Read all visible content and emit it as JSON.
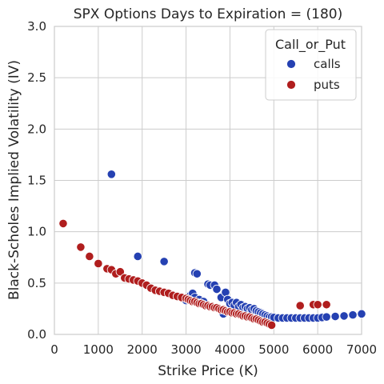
{
  "chart_data": {
    "type": "scatter",
    "title": "SPX Options   Days to Expiration = (180)",
    "xlabel": "Strike Price (K)",
    "ylabel": "Black-Scholes Implied Volatility (IV)",
    "xlim": [
      0,
      7000
    ],
    "ylim": [
      0,
      3.0
    ],
    "xticks": [
      0,
      1000,
      2000,
      3000,
      4000,
      5000,
      6000,
      7000
    ],
    "xtick_labels": [
      "0",
      "1000",
      "2000",
      "3000",
      "4000",
      "5000",
      "6000",
      "7000"
    ],
    "yticks": [
      0.0,
      0.5,
      1.0,
      1.5,
      2.0,
      2.5,
      3.0
    ],
    "ytick_labels": [
      "0.0",
      "0.5",
      "1.0",
      "1.5",
      "2.0",
      "2.5",
      "3.0"
    ],
    "grid": true,
    "legend": {
      "title": "Call_or_Put",
      "placement": "top-right"
    },
    "series": [
      {
        "name": "calls",
        "color": "#2541b2",
        "points": [
          [
            1300,
            1.56
          ],
          [
            1900,
            0.76
          ],
          [
            2500,
            0.71
          ],
          [
            3200,
            0.6
          ],
          [
            3250,
            0.59
          ],
          [
            3000,
            0.33
          ],
          [
            3100,
            0.38
          ],
          [
            3150,
            0.4
          ],
          [
            3200,
            0.36
          ],
          [
            3300,
            0.34
          ],
          [
            3400,
            0.32
          ],
          [
            3500,
            0.49
          ],
          [
            3550,
            0.48
          ],
          [
            3650,
            0.48
          ],
          [
            3700,
            0.44
          ],
          [
            3800,
            0.36
          ],
          [
            3850,
            0.2
          ],
          [
            3900,
            0.41
          ],
          [
            3950,
            0.34
          ],
          [
            4000,
            0.3
          ],
          [
            4050,
            0.31
          ],
          [
            4100,
            0.28
          ],
          [
            4150,
            0.31
          ],
          [
            4200,
            0.27
          ],
          [
            4250,
            0.29
          ],
          [
            4300,
            0.26
          ],
          [
            4350,
            0.27
          ],
          [
            4400,
            0.25
          ],
          [
            4450,
            0.26
          ],
          [
            4500,
            0.24
          ],
          [
            4550,
            0.25
          ],
          [
            4600,
            0.23
          ],
          [
            4650,
            0.22
          ],
          [
            4700,
            0.21
          ],
          [
            4750,
            0.2
          ],
          [
            4800,
            0.19
          ],
          [
            4850,
            0.18
          ],
          [
            4900,
            0.17
          ],
          [
            4950,
            0.17
          ],
          [
            5000,
            0.165
          ],
          [
            5100,
            0.16
          ],
          [
            5200,
            0.16
          ],
          [
            5300,
            0.16
          ],
          [
            5400,
            0.16
          ],
          [
            5500,
            0.16
          ],
          [
            5600,
            0.16
          ],
          [
            5700,
            0.16
          ],
          [
            5800,
            0.16
          ],
          [
            5900,
            0.16
          ],
          [
            6000,
            0.16
          ],
          [
            6100,
            0.165
          ],
          [
            6200,
            0.17
          ],
          [
            6400,
            0.175
          ],
          [
            6600,
            0.18
          ],
          [
            6800,
            0.19
          ],
          [
            7000,
            0.2
          ]
        ]
      },
      {
        "name": "puts",
        "color": "#b01e1e",
        "points": [
          [
            200,
            1.08
          ],
          [
            600,
            0.85
          ],
          [
            800,
            0.76
          ],
          [
            1000,
            0.69
          ],
          [
            1200,
            0.64
          ],
          [
            1300,
            0.63
          ],
          [
            1400,
            0.59
          ],
          [
            1500,
            0.61
          ],
          [
            1600,
            0.55
          ],
          [
            1700,
            0.54
          ],
          [
            1800,
            0.53
          ],
          [
            1900,
            0.52
          ],
          [
            2000,
            0.5
          ],
          [
            2100,
            0.48
          ],
          [
            2200,
            0.45
          ],
          [
            2300,
            0.43
          ],
          [
            2400,
            0.42
          ],
          [
            2500,
            0.41
          ],
          [
            2600,
            0.4
          ],
          [
            2700,
            0.38
          ],
          [
            2800,
            0.37
          ],
          [
            2900,
            0.36
          ],
          [
            3000,
            0.35
          ],
          [
            3050,
            0.34
          ],
          [
            3100,
            0.33
          ],
          [
            3150,
            0.32
          ],
          [
            3200,
            0.32
          ],
          [
            3250,
            0.31
          ],
          [
            3300,
            0.3
          ],
          [
            3350,
            0.3
          ],
          [
            3400,
            0.29
          ],
          [
            3450,
            0.28
          ],
          [
            3500,
            0.28
          ],
          [
            3550,
            0.27
          ],
          [
            3600,
            0.27
          ],
          [
            3650,
            0.26
          ],
          [
            3700,
            0.26
          ],
          [
            3750,
            0.25
          ],
          [
            3800,
            0.24
          ],
          [
            3850,
            0.24
          ],
          [
            3900,
            0.23
          ],
          [
            3950,
            0.22
          ],
          [
            4000,
            0.22
          ],
          [
            4050,
            0.21
          ],
          [
            4100,
            0.21
          ],
          [
            4150,
            0.2
          ],
          [
            4200,
            0.2
          ],
          [
            4250,
            0.19
          ],
          [
            4300,
            0.18
          ],
          [
            4350,
            0.18
          ],
          [
            4400,
            0.17
          ],
          [
            4450,
            0.17
          ],
          [
            4500,
            0.16
          ],
          [
            4550,
            0.15
          ],
          [
            4600,
            0.15
          ],
          [
            4650,
            0.14
          ],
          [
            4700,
            0.13
          ],
          [
            4750,
            0.12
          ],
          [
            4800,
            0.12
          ],
          [
            4850,
            0.11
          ],
          [
            4900,
            0.1
          ],
          [
            4950,
            0.09
          ],
          [
            5600,
            0.28
          ],
          [
            5900,
            0.29
          ],
          [
            6000,
            0.29
          ],
          [
            6200,
            0.29
          ]
        ]
      }
    ]
  }
}
